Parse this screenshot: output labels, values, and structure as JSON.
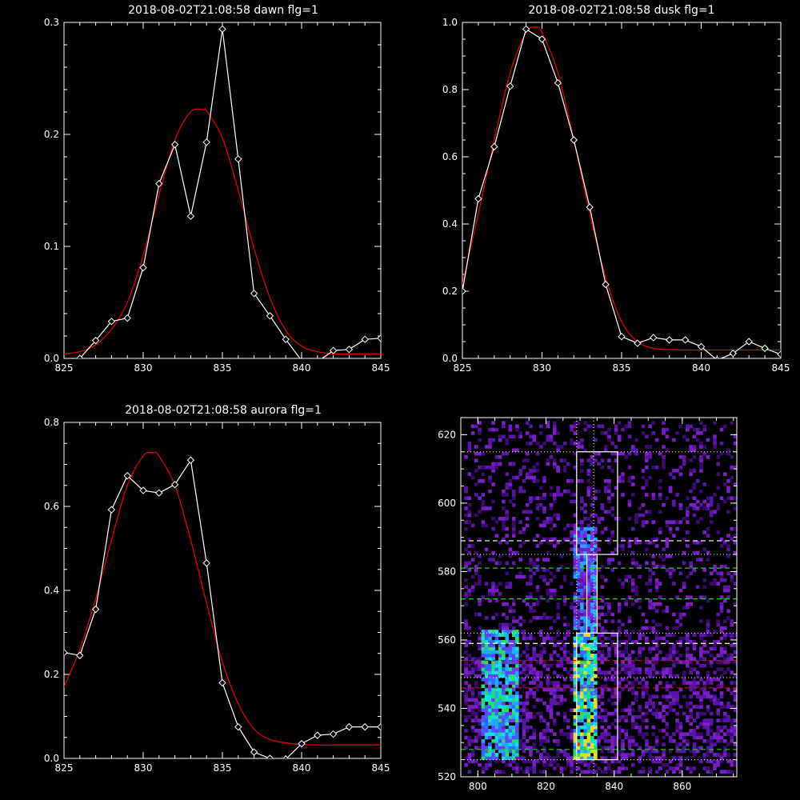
{
  "colors": {
    "background": "#000000",
    "axis": "#ffffff",
    "observed": "#ffffff",
    "fit": "#dd0000",
    "dash_white": "#ffffff",
    "dash_green": "#22cc22",
    "dash_red": "#dd0000"
  },
  "chart_data": [
    {
      "type": "line",
      "title": "2018-08-02T21:08:58 dawn flg=1",
      "xlim": [
        825,
        845
      ],
      "ylim": [
        0,
        0.3
      ],
      "xticks": [
        825,
        830,
        835,
        840,
        845
      ],
      "yticks": [
        0.0,
        0.1,
        0.2,
        0.3
      ],
      "ytick_labels": [
        "0.0",
        "0.1",
        "0.2",
        "0.3"
      ],
      "grid": false,
      "series": [
        {
          "role": "observed",
          "markers": "diamond",
          "x": [
            826,
            827,
            828,
            829,
            830,
            831,
            832,
            833,
            834,
            835,
            836,
            837,
            838,
            839,
            840,
            841,
            842,
            843,
            844,
            845
          ],
          "y": [
            0.0,
            0.016,
            0.033,
            0.036,
            0.081,
            0.156,
            0.191,
            0.127,
            0.193,
            0.294,
            0.178,
            0.058,
            0.038,
            0.017,
            -0.002,
            -0.003,
            0.007,
            0.008,
            0.017,
            0.018
          ]
        },
        {
          "role": "fit",
          "x": [
            825,
            826,
            827,
            828,
            829,
            830,
            831,
            832,
            833,
            833.8,
            834,
            835,
            836,
            837,
            838,
            839,
            840,
            841,
            842,
            843,
            844,
            845
          ],
          "y": [
            0.004,
            0.006,
            0.012,
            0.026,
            0.05,
            0.092,
            0.146,
            0.195,
            0.22,
            0.222,
            0.221,
            0.197,
            0.15,
            0.098,
            0.054,
            0.025,
            0.011,
            0.006,
            0.004,
            0.004,
            0.004,
            0.004
          ]
        }
      ]
    },
    {
      "type": "line",
      "title": "2018-08-02T21:08:58 dusk flg=1",
      "xlim": [
        825,
        845
      ],
      "ylim": [
        0,
        1.0
      ],
      "xticks": [
        825,
        830,
        835,
        840,
        845
      ],
      "yticks": [
        0.0,
        0.2,
        0.4,
        0.6,
        0.8,
        1.0
      ],
      "ytick_labels": [
        "0.0",
        "0.2",
        "0.4",
        "0.6",
        "0.8",
        "1.0"
      ],
      "grid": false,
      "series": [
        {
          "role": "observed",
          "markers": "diamond",
          "x": [
            825,
            826,
            827,
            828,
            829,
            830,
            831,
            832,
            833,
            834,
            835,
            836,
            837,
            838,
            839,
            840,
            841,
            842,
            843,
            844,
            845
          ],
          "y": [
            0.2,
            0.475,
            0.63,
            0.81,
            0.98,
            0.95,
            0.82,
            0.65,
            0.45,
            0.22,
            0.065,
            0.045,
            0.062,
            0.055,
            0.055,
            0.035,
            -0.005,
            0.015,
            0.05,
            0.03,
            0.012
          ]
        },
        {
          "role": "fit",
          "x": [
            825,
            826,
            827,
            828,
            829,
            829.6,
            830,
            831,
            832,
            833,
            834,
            835,
            836,
            837,
            838,
            839,
            840,
            841,
            842,
            843,
            844,
            845
          ],
          "y": [
            0.22,
            0.43,
            0.65,
            0.85,
            0.97,
            0.985,
            0.97,
            0.85,
            0.65,
            0.43,
            0.24,
            0.11,
            0.05,
            0.03,
            0.026,
            0.025,
            0.025,
            0.025,
            0.025,
            0.025,
            0.025,
            0.025
          ]
        }
      ]
    },
    {
      "type": "line",
      "title": "2018-08-02T21:08:58 aurora flg=1",
      "xlim": [
        825,
        845
      ],
      "ylim": [
        0,
        0.8
      ],
      "xticks": [
        825,
        830,
        835,
        840,
        845
      ],
      "yticks": [
        0.0,
        0.2,
        0.4,
        0.6,
        0.8
      ],
      "ytick_labels": [
        "0.0",
        "0.2",
        "0.4",
        "0.6",
        "0.8"
      ],
      "grid": false,
      "series": [
        {
          "role": "observed",
          "markers": "diamond",
          "x": [
            825,
            826,
            827,
            828,
            829,
            830,
            831,
            832,
            833,
            834,
            835,
            836,
            837,
            838,
            839,
            840,
            841,
            842,
            843,
            844,
            845
          ],
          "y": [
            0.252,
            0.245,
            0.355,
            0.592,
            0.673,
            0.638,
            0.632,
            0.652,
            0.71,
            0.465,
            0.18,
            0.075,
            0.015,
            0.0,
            -0.002,
            0.035,
            0.055,
            0.058,
            0.075,
            0.075,
            0.075
          ]
        },
        {
          "role": "fit",
          "x": [
            825,
            826,
            827,
            828,
            829,
            830,
            830.6,
            831,
            832,
            833,
            834,
            835,
            836,
            837,
            838,
            839,
            840,
            841,
            842,
            843,
            844,
            845
          ],
          "y": [
            0.17,
            0.26,
            0.38,
            0.52,
            0.65,
            0.72,
            0.728,
            0.72,
            0.65,
            0.52,
            0.37,
            0.23,
            0.13,
            0.07,
            0.045,
            0.037,
            0.033,
            0.032,
            0.032,
            0.032,
            0.032,
            0.032
          ]
        }
      ]
    },
    {
      "type": "heatmap",
      "title": "",
      "xlim": [
        795,
        876
      ],
      "ylim": [
        520,
        625
      ],
      "xticks": [
        800,
        820,
        840,
        860
      ],
      "yticks": [
        520,
        540,
        560,
        580,
        600,
        620
      ],
      "grid": false,
      "palette": [
        "#1a0033",
        "#3a0a70",
        "#5a14a8",
        "#7a1ec8",
        "#6a3cff",
        "#2f6bff",
        "#1faaff",
        "#14e0e0",
        "#22e070",
        "#e0e020",
        "#ff3000"
      ],
      "intensity_regions": [
        {
          "x": [
            801,
            811
          ],
          "y": [
            525,
            562
          ],
          "intensity": 0.55
        },
        {
          "x": [
            828,
            834
          ],
          "y": [
            525,
            562
          ],
          "intensity": 0.75
        },
        {
          "x": [
            828,
            834
          ],
          "y": [
            562,
            592
          ],
          "intensity": 0.25
        }
      ],
      "hot_spot": {
        "x": 829,
        "y": 529
      },
      "boxes": [
        {
          "x": [
            829,
            841
          ],
          "y": [
            585,
            615
          ]
        },
        {
          "x": [
            832,
            835
          ],
          "y": [
            562,
            585
          ]
        },
        {
          "x": [
            829,
            841
          ],
          "y": [
            525,
            562
          ]
        }
      ],
      "dotted_vertical": [
        829,
        834
      ],
      "dotted_horizontal": [
        615,
        585,
        562,
        549,
        525
      ],
      "dashed_lines": [
        {
          "y": 589,
          "color": "white"
        },
        {
          "y": 581,
          "color": "green"
        },
        {
          "y": 572,
          "color": "green"
        },
        {
          "y": 559,
          "color": "white"
        },
        {
          "y": 554,
          "color": "red"
        },
        {
          "y": 546,
          "color": "red"
        },
        {
          "y": 528,
          "color": "green"
        }
      ]
    }
  ]
}
